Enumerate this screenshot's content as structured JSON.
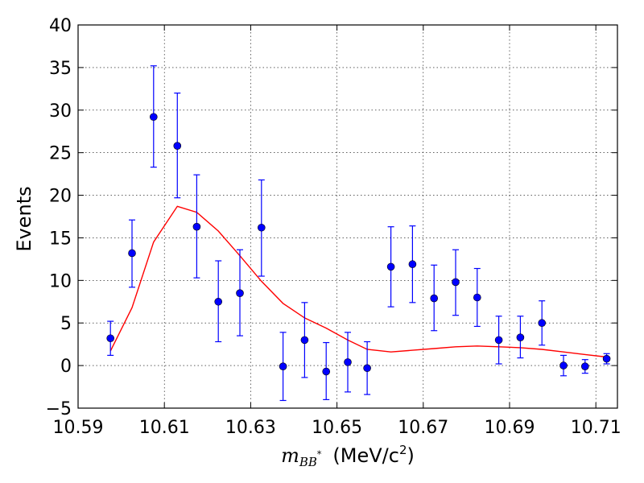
{
  "chart_data": {
    "type": "scatter",
    "ylabel": "Events",
    "xlabel": {
      "math_main": "m",
      "math_sub": "BB",
      "math_sup": "*",
      "unit": "(MeV/c",
      "unit_sup": "2",
      "unit_close": ")"
    },
    "xlim": [
      10.59,
      10.715
    ],
    "ylim": [
      -5,
      40
    ],
    "x_ticks": [
      "10.59",
      "10.61",
      "10.63",
      "10.65",
      "10.67",
      "10.69",
      "10.71"
    ],
    "y_ticks": [
      "40",
      "35",
      "30",
      "25",
      "20",
      "15",
      "10",
      "5",
      "0",
      "−5"
    ],
    "grid": true,
    "series": [
      {
        "kind": "errorbar",
        "color": "#0000ff",
        "x": [
          10.5975,
          10.6025,
          10.6075,
          10.613,
          10.6175,
          10.6225,
          10.6275,
          10.6325,
          10.6375,
          10.6425,
          10.6475,
          10.6525,
          10.657,
          10.6625,
          10.6675,
          10.6725,
          10.6775,
          10.6825,
          10.6875,
          10.6925,
          10.6975,
          10.7025,
          10.7075,
          10.7125
        ],
        "y": [
          3.2,
          13.2,
          29.2,
          25.8,
          16.3,
          7.5,
          8.5,
          16.2,
          -0.1,
          3.0,
          -0.7,
          0.4,
          -0.3,
          11.6,
          11.9,
          7.9,
          9.8,
          8.0,
          3.0,
          3.3,
          5.0,
          0.0,
          -0.1,
          0.8
        ],
        "yerr_low": [
          2.0,
          4.0,
          5.9,
          6.1,
          6.0,
          4.7,
          5.0,
          5.7,
          4.0,
          4.4,
          3.3,
          3.5,
          3.1,
          4.7,
          4.5,
          3.8,
          3.9,
          3.4,
          2.8,
          2.4,
          2.6,
          1.2,
          0.8,
          0.6
        ],
        "yerr_high": [
          2.0,
          3.9,
          6.0,
          6.2,
          6.1,
          4.8,
          5.1,
          5.6,
          4.0,
          4.4,
          3.4,
          3.5,
          3.1,
          4.7,
          4.5,
          3.9,
          3.8,
          3.4,
          2.8,
          2.5,
          2.6,
          1.2,
          0.8,
          0.6
        ]
      },
      {
        "kind": "line",
        "color": "#ff0000",
        "x": [
          10.5975,
          10.6025,
          10.6075,
          10.613,
          10.6175,
          10.6225,
          10.6275,
          10.6325,
          10.6375,
          10.6425,
          10.6475,
          10.6525,
          10.657,
          10.6625,
          10.6675,
          10.6725,
          10.6775,
          10.6825,
          10.6875,
          10.6925,
          10.6975,
          10.7025,
          10.7075,
          10.7125
        ],
        "y": [
          1.7,
          6.8,
          14.5,
          18.7,
          18.0,
          15.8,
          12.9,
          9.9,
          7.3,
          5.6,
          4.4,
          3.0,
          1.9,
          1.6,
          1.8,
          2.0,
          2.2,
          2.3,
          2.2,
          2.1,
          1.9,
          1.6,
          1.3,
          1.0
        ]
      }
    ]
  }
}
